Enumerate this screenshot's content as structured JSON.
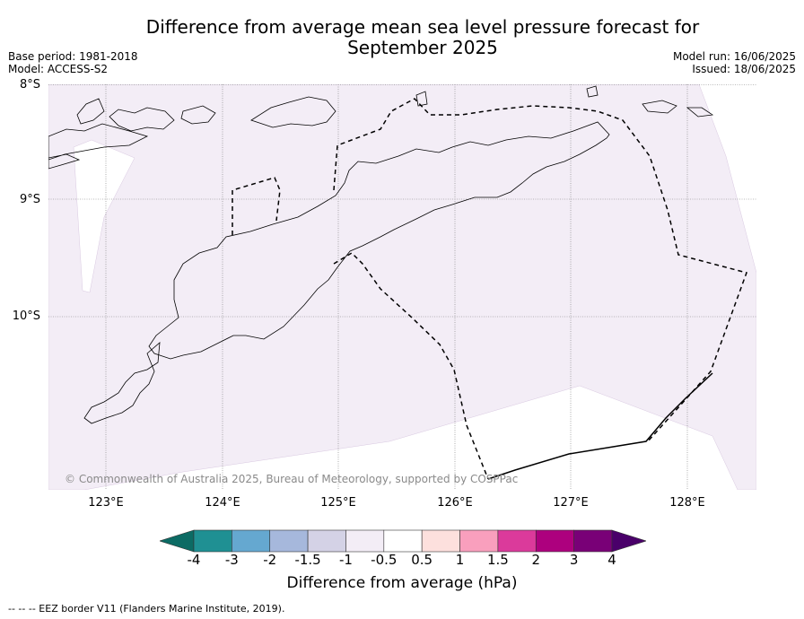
{
  "title": "Difference from average mean sea level pressure forecast for September 2025",
  "meta": {
    "base_period": "Base period: 1981-2018",
    "model": "Model: ACCESS-S2",
    "model_run": "Model run: 16/06/2025",
    "issued": "Issued: 18/06/2025"
  },
  "map": {
    "lat_labels": [
      "8°S",
      "9°S",
      "10°S"
    ],
    "lon_labels": [
      "123°E",
      "124°E",
      "125°E",
      "126°E",
      "127°E",
      "128°E"
    ],
    "copyright": "© Commonwealth of Australia 2025, Bureau of Meteorology, supported by COSPPac",
    "shade_color": "#f3edf6",
    "coast_color": "#000000",
    "grid": true
  },
  "colorbar": {
    "labels": [
      "-4",
      "-3",
      "-2",
      "-1.5",
      "-1",
      "-0.5",
      "0.5",
      "1",
      "1.5",
      "2",
      "3",
      "4"
    ],
    "colors": [
      "#0c6b64",
      "#1f9093",
      "#65a8d0",
      "#a6b8dc",
      "#d4d2e6",
      "#f3edf6",
      "#ffffff",
      "#fde0dd",
      "#f99fbd",
      "#db3a9b",
      "#ad007e",
      "#790077",
      "#4a006a"
    ],
    "title": "Difference from average (hPa)"
  },
  "footnote": "--  --  -- EEZ border V11 (Flanders Marine Institute, 2019)."
}
